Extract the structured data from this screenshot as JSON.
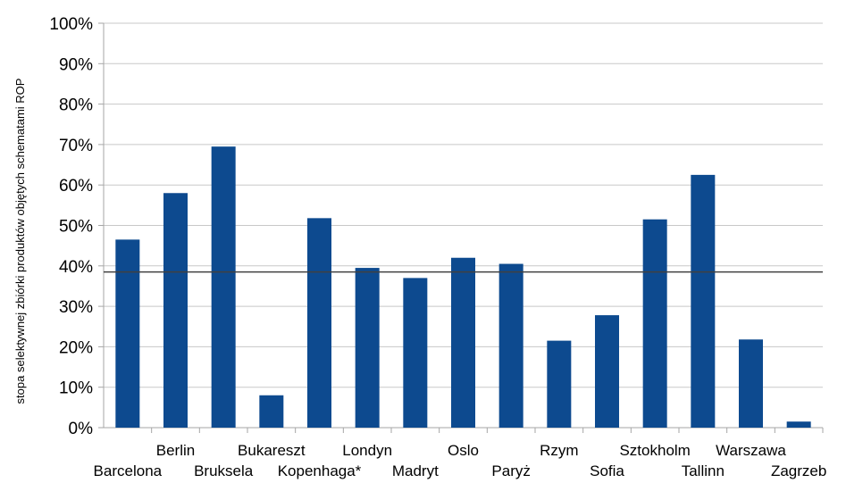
{
  "chart_data": {
    "type": "bar",
    "title": "",
    "xlabel": "",
    "ylabel": "stopa selektywnej zbiórki produktów objętych schematami ROP",
    "ylim": [
      0,
      100
    ],
    "y_tick_suffix": "%",
    "y_ticks": [
      "0%",
      "10%",
      "20%",
      "30%",
      "40%",
      "50%",
      "60%",
      "70%",
      "80%",
      "90%",
      "100%"
    ],
    "grid": true,
    "legend": "none",
    "categories": [
      "Barcelona",
      "Berlin",
      "Bruksela",
      "Bukareszt",
      "Kopenhaga*",
      "Londyn",
      "Madryt",
      "Oslo",
      "Paryż",
      "Rzym",
      "Sofia",
      "Sztokholm",
      "Tallinn",
      "Warszawa",
      "Zagrzeb"
    ],
    "values": [
      46.5,
      58,
      69.5,
      8,
      51.8,
      39.5,
      37,
      42,
      40.5,
      21.5,
      27.8,
      51.5,
      62.5,
      21.8,
      1.5
    ],
    "reference_line": 38.5,
    "colors": {
      "bar": "#0d4a8f",
      "reference_line": "#404040",
      "grid": "#c8c8c8",
      "axis": "#a6a6a6"
    }
  }
}
